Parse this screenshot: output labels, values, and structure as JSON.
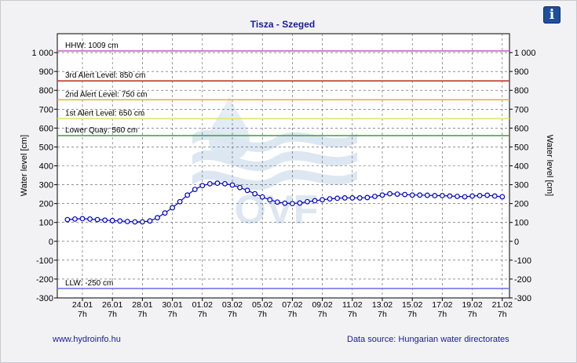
{
  "chart_data": {
    "type": "line",
    "title": "Tisza - Szeged",
    "ylabel": "Water level [cm]",
    "ylabel_right": "Water level [cm]",
    "ylim": [
      -300,
      1100
    ],
    "y_ticks": [
      -300,
      -200,
      -100,
      0,
      100,
      200,
      300,
      400,
      500,
      600,
      700,
      800,
      900,
      1000
    ],
    "y_tick_labels": [
      "-300",
      "-200",
      "-100",
      "0",
      "100",
      "200",
      "300",
      "400",
      "500",
      "600",
      "700",
      "800",
      "900",
      "1 000"
    ],
    "x_ticks": [
      {
        "date": "24.01",
        "hour": "7h"
      },
      {
        "date": "26.01",
        "hour": "7h"
      },
      {
        "date": "28.01",
        "hour": "7h"
      },
      {
        "date": "30.01",
        "hour": "7h"
      },
      {
        "date": "01.02",
        "hour": "7h"
      },
      {
        "date": "03.02",
        "hour": "7h"
      },
      {
        "date": "05.02",
        "hour": "7h"
      },
      {
        "date": "07.02",
        "hour": "7h"
      },
      {
        "date": "09.02",
        "hour": "7h"
      },
      {
        "date": "11.02",
        "hour": "7h"
      },
      {
        "date": "13.02",
        "hour": "7h"
      },
      {
        "date": "15.02",
        "hour": "7h"
      },
      {
        "date": "17.02",
        "hour": "7h"
      },
      {
        "date": "19.02",
        "hour": "7h"
      },
      {
        "date": "21.02",
        "hour": "7h"
      }
    ],
    "grid": true,
    "thresholds": [
      {
        "label": "HHW: 1009 cm",
        "value": 1009,
        "color": "#cc66cc"
      },
      {
        "label": "3rd Alert Level: 850 cm",
        "value": 850,
        "color": "#c0392b"
      },
      {
        "label": "2nd Alert Level: 750 cm",
        "value": 750,
        "color": "#e0b030"
      },
      {
        "label": "1st Alert Level: 650 cm",
        "value": 650,
        "color": "#e8e070"
      },
      {
        "label": "Lower Quay: 560 cm",
        "value": 560,
        "color": "#44aa44"
      },
      {
        "label": "LLW: -250 cm",
        "value": -250,
        "color": "#7777ee"
      }
    ],
    "series": [
      {
        "color": "#0000cc",
        "x_offset_days": [
          -1.0,
          -0.5,
          0.0,
          0.5,
          1.0,
          1.5,
          2.0,
          2.5,
          3.0,
          3.5,
          4.0,
          4.5,
          5.0,
          5.5,
          6.0,
          6.5,
          7.0,
          7.5,
          8.0,
          8.5,
          9.0,
          9.5,
          10.0,
          10.5,
          11.0,
          11.5,
          12.0,
          12.5,
          13.0,
          13.5,
          14.0,
          14.5,
          15.0,
          15.5,
          16.0,
          16.5,
          17.0,
          17.5,
          18.0,
          18.5,
          19.0,
          19.5,
          20.0,
          20.5,
          21.0,
          21.5,
          22.0,
          22.5,
          23.0,
          23.5,
          24.0,
          24.5,
          25.0,
          25.5,
          26.0,
          26.5,
          27.0,
          27.5,
          28.0
        ],
        "values": [
          115,
          118,
          120,
          118,
          115,
          112,
          110,
          108,
          105,
          103,
          103,
          108,
          125,
          150,
          178,
          210,
          245,
          275,
          295,
          305,
          308,
          305,
          298,
          285,
          270,
          252,
          235,
          220,
          208,
          202,
          200,
          203,
          210,
          215,
          220,
          225,
          228,
          230,
          230,
          230,
          232,
          238,
          245,
          252,
          250,
          248,
          245,
          245,
          244,
          242,
          242,
          240,
          238,
          236,
          240,
          242,
          244,
          240,
          236
        ]
      }
    ]
  },
  "footer": {
    "website": "www.hydroinfo.hu",
    "data_source": "Data source: Hungarian water directorates"
  },
  "info_button_label": "i",
  "watermark": "OVF"
}
